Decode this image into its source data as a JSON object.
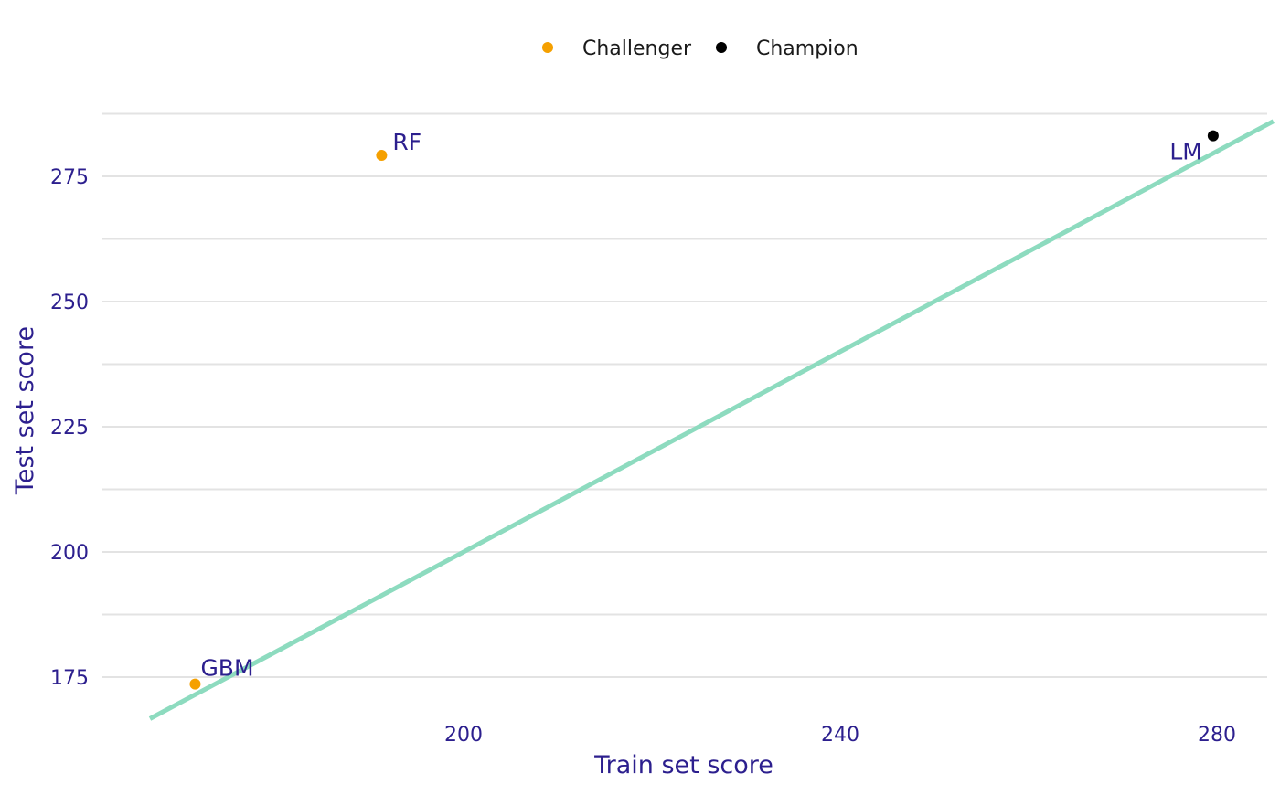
{
  "chart_data": {
    "type": "scatter",
    "title": "",
    "xlabel": "Train set score",
    "ylabel": "Test set score",
    "xlim": [
      166,
      286
    ],
    "ylim": [
      167.5,
      290
    ],
    "x_ticks": [
      200,
      240,
      280
    ],
    "y_ticks": [
      175,
      200,
      225,
      250,
      275
    ],
    "y_minor_gridlines": [
      187.5,
      212.5,
      237.5,
      262.5,
      287.5
    ],
    "grid": "horizontal",
    "legend_position": "top",
    "legend": [
      {
        "label": "Challenger",
        "color": "#f5a000"
      },
      {
        "label": "Champion",
        "color": "#000000"
      }
    ],
    "points": [
      {
        "label": "GBM",
        "x": 171.5,
        "y": 173.6,
        "group": "Challenger"
      },
      {
        "label": "RF",
        "x": 191.3,
        "y": 279.2,
        "group": "Challenger"
      },
      {
        "label": "LM",
        "x": 279.6,
        "y": 283.1,
        "group": "Champion"
      }
    ],
    "reference_line": {
      "slope": 1,
      "intercept": 0,
      "color": "#8ddbbf"
    }
  }
}
